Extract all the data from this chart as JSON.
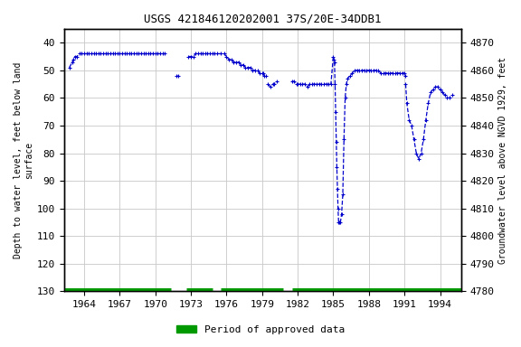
{
  "title": "USGS 421846120202001 37S/20E-34DDB1",
  "ylabel_left": "Depth to water level, feet below land\nsurface",
  "ylabel_right": "Groundwater level above NGVD 1929, feet",
  "ylim_left": [
    130,
    35
  ],
  "ylim_right": [
    4780,
    4875
  ],
  "yticks_left": [
    40,
    50,
    60,
    70,
    80,
    90,
    100,
    110,
    120,
    130
  ],
  "yticks_right": [
    4780,
    4790,
    4800,
    4810,
    4820,
    4830,
    4840,
    4850,
    4860,
    4870
  ],
  "xticks": [
    1964,
    1967,
    1970,
    1973,
    1976,
    1979,
    1982,
    1985,
    1988,
    1991,
    1994
  ],
  "xlim": [
    1962.3,
    1995.8
  ],
  "bg_color": "#ffffff",
  "plot_bg_color": "#ffffff",
  "grid_color": "#c8c8c8",
  "line_color": "#0000cc",
  "approved_color": "#009900",
  "legend_label": "Period of approved data",
  "approved_bar_y": 130,
  "approved_segments": [
    [
      1962.3,
      1971.3
    ],
    [
      1972.6,
      1974.8
    ],
    [
      1975.5,
      1980.8
    ],
    [
      1981.5,
      1995.8
    ]
  ],
  "data_x": [
    1962.75,
    1963.0,
    1963.1,
    1963.2,
    1963.4,
    1963.6,
    1963.8,
    1964.0,
    1964.2,
    1964.4,
    1964.6,
    1964.8,
    1965.0,
    1965.2,
    1965.4,
    1965.6,
    1965.8,
    1966.0,
    1966.2,
    1966.4,
    1966.6,
    1966.8,
    1967.0,
    1967.2,
    1967.4,
    1967.6,
    1967.8,
    1968.0,
    1968.2,
    1968.4,
    1968.6,
    1968.8,
    1969.0,
    1969.2,
    1969.4,
    1969.6,
    1969.8,
    1970.0,
    1970.2,
    1970.4,
    1970.6,
    1970.8,
    null,
    1971.8,
    1971.9,
    null,
    1972.8,
    1973.0,
    1973.2,
    1973.4,
    1973.6,
    1973.8,
    1974.0,
    1974.2,
    1974.4,
    1974.6,
    1974.8,
    1975.0,
    1975.2,
    1975.5,
    1975.8,
    1976.0,
    1976.2,
    1976.4,
    1976.6,
    1976.8,
    1977.0,
    1977.2,
    1977.4,
    1977.6,
    1977.8,
    1978.0,
    1978.2,
    1978.4,
    1978.6,
    1978.8,
    1979.0,
    1979.1,
    1979.2,
    1979.3,
    null,
    1979.5,
    1979.7,
    1979.9,
    1980.0,
    1980.2,
    null,
    1981.5,
    1981.7,
    1981.9,
    1982.0,
    1982.2,
    1982.4,
    1982.6,
    1982.8,
    1983.0,
    1983.2,
    1983.4,
    1983.6,
    1983.8,
    1984.0,
    1984.2,
    1984.4,
    1984.6,
    1984.8,
    1985.0,
    1985.05,
    null,
    1985.1,
    1985.15,
    1985.2,
    1985.25,
    1985.3,
    1985.35,
    1985.4,
    1985.45,
    1985.5,
    1985.6,
    1985.7,
    1985.8,
    1985.9,
    1986.0,
    1986.1,
    1986.2,
    1986.4,
    1986.6,
    1986.8,
    1987.0,
    1987.2,
    1987.4,
    1987.6,
    1987.8,
    1988.0,
    1988.2,
    1988.4,
    1988.6,
    1988.8,
    1989.0,
    1989.2,
    1989.4,
    1989.6,
    1989.8,
    1990.0,
    1990.2,
    1990.4,
    1990.6,
    1990.8,
    1991.0,
    1991.05,
    null,
    1991.1,
    1991.2,
    1991.4,
    1991.6,
    1991.8,
    1992.0,
    1992.2,
    1992.4,
    1992.6,
    1992.8,
    1993.0,
    1993.2,
    1993.4,
    1993.6,
    1993.8,
    1994.0,
    1994.2,
    1994.4,
    1994.6,
    1994.8,
    1995.0
  ],
  "data_y": [
    49,
    47,
    46,
    45,
    45,
    44,
    44,
    44,
    44,
    44,
    44,
    44,
    44,
    44,
    44,
    44,
    44,
    44,
    44,
    44,
    44,
    44,
    44,
    44,
    44,
    44,
    44,
    44,
    44,
    44,
    44,
    44,
    44,
    44,
    44,
    44,
    44,
    44,
    44,
    44,
    44,
    44,
    null,
    52,
    52,
    null,
    45,
    45,
    45,
    44,
    44,
    44,
    44,
    44,
    44,
    44,
    44,
    44,
    44,
    44,
    44,
    45,
    46,
    46,
    47,
    47,
    47,
    48,
    48,
    49,
    49,
    49,
    50,
    50,
    50,
    51,
    51,
    51,
    52,
    52,
    null,
    55,
    56,
    55,
    55,
    54,
    null,
    54,
    54,
    55,
    55,
    55,
    55,
    55,
    56,
    55,
    55,
    55,
    55,
    55,
    55,
    55,
    55,
    55,
    55,
    45,
    46,
    null,
    47,
    55,
    65,
    76,
    85,
    93,
    100,
    105,
    105,
    105,
    102,
    95,
    75,
    60,
    55,
    53,
    52,
    51,
    50,
    50,
    50,
    50,
    50,
    50,
    50,
    50,
    50,
    50,
    50,
    51,
    51,
    51,
    51,
    51,
    51,
    51,
    51,
    51,
    51,
    51,
    52,
    null,
    55,
    62,
    68,
    70,
    75,
    80,
    82,
    80,
    75,
    68,
    62,
    58,
    57,
    56,
    56,
    57,
    58,
    59,
    60,
    60,
    59
  ]
}
